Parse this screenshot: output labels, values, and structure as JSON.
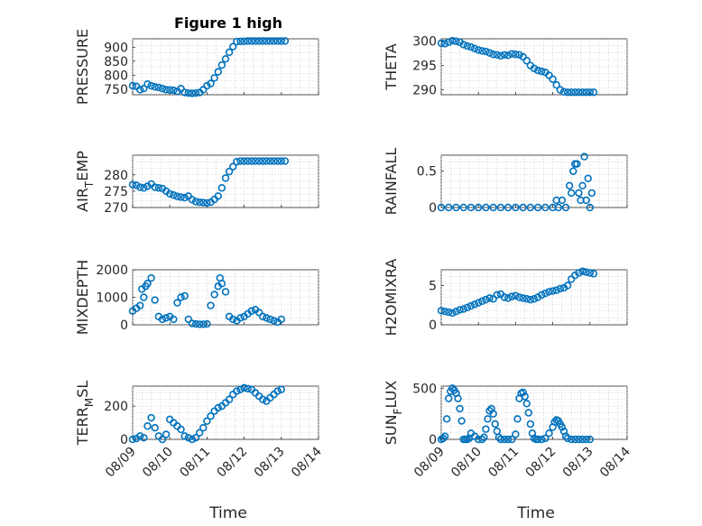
{
  "figure_title": "Figure 1 high",
  "marker_color": "#0072BD",
  "x_axis": {
    "label": "Time",
    "ticks": [
      "08/09",
      "08/10",
      "08/11",
      "08/12",
      "08/13",
      "08/14"
    ],
    "range": [
      "08/09",
      "08/14"
    ]
  },
  "chart_data": [
    {
      "type": "scatter",
      "marker": "o",
      "grid": true,
      "title": "Figure 1 high",
      "ylabel": "PRESSURE",
      "ylabel_parts": [
        "PRESSURE"
      ],
      "ylim": [
        730,
        930
      ],
      "yticks": [
        750,
        800,
        850,
        900
      ],
      "x": [
        0.0,
        0.1,
        0.2,
        0.3,
        0.4,
        0.5,
        0.6,
        0.7,
        0.8,
        0.9,
        1.0,
        1.1,
        1.2,
        1.3,
        1.4,
        1.5,
        1.6,
        1.7,
        1.8,
        1.9,
        2.0,
        2.1,
        2.2,
        2.3,
        2.4,
        2.5,
        2.6,
        2.7,
        2.8,
        2.9,
        3.0,
        3.1,
        3.2,
        3.3,
        3.4,
        3.5,
        3.6,
        3.7,
        3.8,
        3.9,
        4.0,
        4.1
      ],
      "y": [
        762,
        760,
        748,
        752,
        768,
        762,
        758,
        756,
        752,
        748,
        747,
        746,
        742,
        752,
        738,
        736,
        735,
        736,
        738,
        748,
        762,
        770,
        790,
        812,
        836,
        858,
        882,
        902,
        920,
        921,
        921,
        922,
        922,
        922,
        922,
        922,
        922,
        922,
        922,
        922,
        922,
        922
      ]
    },
    {
      "type": "scatter",
      "marker": "o",
      "grid": true,
      "ylabel": "THETA",
      "ylabel_parts": [
        "THETA"
      ],
      "ylim": [
        289,
        300.5
      ],
      "yticks": [
        290,
        295,
        300
      ],
      "x": [
        0.0,
        0.1,
        0.2,
        0.3,
        0.4,
        0.5,
        0.6,
        0.7,
        0.8,
        0.9,
        1.0,
        1.1,
        1.2,
        1.3,
        1.4,
        1.5,
        1.6,
        1.7,
        1.8,
        1.9,
        2.0,
        2.1,
        2.2,
        2.3,
        2.4,
        2.5,
        2.6,
        2.7,
        2.8,
        2.9,
        3.0,
        3.1,
        3.2,
        3.3,
        3.4,
        3.5,
        3.6,
        3.7,
        3.8,
        3.9,
        4.0,
        4.1
      ],
      "y": [
        299.6,
        299.5,
        299.8,
        300.1,
        300.0,
        299.8,
        299.3,
        299.0,
        298.8,
        298.5,
        298.2,
        298.0,
        297.9,
        297.6,
        297.3,
        297.2,
        297.0,
        297.2,
        297.1,
        297.4,
        297.3,
        297.2,
        296.8,
        296.0,
        295.0,
        294.4,
        294.0,
        293.8,
        293.6,
        293.0,
        292.2,
        291.0,
        290.0,
        289.6,
        289.5,
        289.5,
        289.5,
        289.5,
        289.5,
        289.5,
        289.5,
        289.5
      ]
    },
    {
      "type": "scatter",
      "marker": "o",
      "grid": true,
      "ylabel": "AIR_TEMP",
      "ylabel_parts": [
        "AIR",
        "T",
        "EMP"
      ],
      "ylim": [
        270,
        286
      ],
      "yticks": [
        270,
        275,
        280
      ],
      "x": [
        0.0,
        0.1,
        0.2,
        0.3,
        0.4,
        0.5,
        0.6,
        0.7,
        0.8,
        0.9,
        1.0,
        1.1,
        1.2,
        1.3,
        1.4,
        1.5,
        1.6,
        1.7,
        1.8,
        1.9,
        2.0,
        2.1,
        2.2,
        2.3,
        2.4,
        2.5,
        2.6,
        2.7,
        2.8,
        2.9,
        3.0,
        3.1,
        3.2,
        3.3,
        3.4,
        3.5,
        3.6,
        3.7,
        3.8,
        3.9,
        4.0,
        4.1
      ],
      "y": [
        277.0,
        276.8,
        276.2,
        276.0,
        276.5,
        277.2,
        276.2,
        276.0,
        275.8,
        275.0,
        274.2,
        273.8,
        273.4,
        273.2,
        273.0,
        273.5,
        272.4,
        271.8,
        271.6,
        271.5,
        271.4,
        271.6,
        272.5,
        273.5,
        276.0,
        279.0,
        281.0,
        282.5,
        284.0,
        284.2,
        284.2,
        284.2,
        284.2,
        284.2,
        284.2,
        284.2,
        284.2,
        284.2,
        284.2,
        284.2,
        284.2,
        284.2
      ]
    },
    {
      "type": "scatter",
      "marker": "o",
      "grid": true,
      "ylabel": "RAINFALL",
      "ylabel_parts": [
        "RAINFALL"
      ],
      "ylim": [
        0,
        0.72
      ],
      "yticks": [
        0,
        0.5
      ],
      "x": [
        0.0,
        0.2,
        0.4,
        0.6,
        0.8,
        1.0,
        1.2,
        1.4,
        1.6,
        1.8,
        2.0,
        2.2,
        2.4,
        2.6,
        2.8,
        3.0,
        3.1,
        3.15,
        3.25,
        3.35,
        3.45,
        3.5,
        3.55,
        3.6,
        3.65,
        3.7,
        3.75,
        3.8,
        3.85,
        3.9,
        3.95,
        4.0,
        4.05
      ],
      "y": [
        0,
        0,
        0,
        0,
        0,
        0,
        0,
        0,
        0,
        0,
        0,
        0,
        0,
        0,
        0,
        0,
        0.1,
        0,
        0.1,
        0,
        0.3,
        0.2,
        0.5,
        0.6,
        0.6,
        0.2,
        0.1,
        0.3,
        0.7,
        0.1,
        0.4,
        0,
        0.2
      ]
    },
    {
      "type": "scatter",
      "marker": "o",
      "grid": true,
      "ylabel": "MIXDEPTH",
      "ylabel_parts": [
        "MIXDEPTH"
      ],
      "ylim": [
        0,
        2000
      ],
      "yticks": [
        0,
        1000,
        2000
      ],
      "x": [
        0.0,
        0.1,
        0.2,
        0.25,
        0.3,
        0.35,
        0.4,
        0.5,
        0.6,
        0.7,
        0.8,
        0.9,
        1.0,
        1.1,
        1.2,
        1.3,
        1.4,
        1.5,
        1.6,
        1.7,
        1.8,
        1.9,
        2.0,
        2.1,
        2.2,
        2.3,
        2.35,
        2.4,
        2.5,
        2.6,
        2.7,
        2.8,
        2.9,
        3.0,
        3.1,
        3.2,
        3.3,
        3.4,
        3.5,
        3.6,
        3.7,
        3.8,
        3.9,
        4.0
      ],
      "y": [
        500,
        600,
        700,
        1300,
        1000,
        1400,
        1500,
        1700,
        900,
        300,
        200,
        250,
        300,
        200,
        800,
        1000,
        1050,
        200,
        50,
        30,
        20,
        20,
        30,
        700,
        1100,
        1400,
        1700,
        1500,
        1200,
        300,
        200,
        150,
        250,
        300,
        400,
        500,
        550,
        450,
        300,
        250,
        200,
        150,
        100,
        200
      ]
    },
    {
      "type": "scatter",
      "marker": "o",
      "grid": true,
      "ylabel": "H2OMIXRA",
      "ylabel_parts": [
        "H2OMIXRA"
      ],
      "ylim": [
        0,
        7
      ],
      "yticks": [
        0,
        5
      ],
      "x": [
        0.0,
        0.1,
        0.2,
        0.3,
        0.4,
        0.5,
        0.6,
        0.7,
        0.8,
        0.9,
        1.0,
        1.1,
        1.2,
        1.3,
        1.4,
        1.5,
        1.6,
        1.7,
        1.8,
        1.9,
        2.0,
        2.1,
        2.2,
        2.3,
        2.4,
        2.5,
        2.6,
        2.7,
        2.8,
        2.9,
        3.0,
        3.1,
        3.2,
        3.3,
        3.4,
        3.5,
        3.6,
        3.7,
        3.8,
        3.9,
        4.0,
        4.1
      ],
      "y": [
        1.8,
        1.7,
        1.6,
        1.5,
        1.7,
        1.9,
        2.0,
        2.2,
        2.4,
        2.6,
        2.8,
        3.0,
        3.2,
        3.4,
        3.3,
        3.8,
        3.9,
        3.5,
        3.4,
        3.6,
        3.7,
        3.5,
        3.4,
        3.3,
        3.2,
        3.3,
        3.5,
        3.8,
        4.0,
        4.2,
        4.3,
        4.4,
        4.6,
        4.7,
        5.0,
        5.8,
        6.3,
        6.6,
        6.8,
        6.7,
        6.6,
        6.5
      ]
    },
    {
      "type": "scatter",
      "marker": "o",
      "grid": true,
      "ylabel": "TERR_MSL",
      "ylabel_parts": [
        "TERR",
        "M",
        "SL"
      ],
      "ylim": [
        0,
        320
      ],
      "yticks": [
        0,
        200
      ],
      "x": [
        0.0,
        0.1,
        0.2,
        0.3,
        0.4,
        0.5,
        0.6,
        0.7,
        0.8,
        0.9,
        1.0,
        1.1,
        1.2,
        1.3,
        1.4,
        1.5,
        1.6,
        1.7,
        1.8,
        1.9,
        2.0,
        2.1,
        2.2,
        2.3,
        2.4,
        2.5,
        2.6,
        2.7,
        2.8,
        2.9,
        3.0,
        3.1,
        3.2,
        3.3,
        3.4,
        3.5,
        3.6,
        3.7,
        3.8,
        3.9,
        4.0
      ],
      "y": [
        0,
        5,
        20,
        10,
        80,
        130,
        70,
        20,
        0,
        30,
        120,
        100,
        80,
        60,
        20,
        10,
        0,
        10,
        40,
        70,
        110,
        140,
        170,
        190,
        200,
        220,
        240,
        270,
        290,
        300,
        310,
        305,
        300,
        280,
        260,
        240,
        230,
        250,
        270,
        290,
        300
      ]
    },
    {
      "type": "scatter",
      "marker": "o",
      "grid": true,
      "ylabel": "SUN_FLUX",
      "ylabel_parts": [
        "SUN",
        "F",
        "LUX"
      ],
      "ylim": [
        0,
        520
      ],
      "yticks": [
        0,
        500
      ],
      "x": [
        0.0,
        0.05,
        0.1,
        0.15,
        0.2,
        0.25,
        0.3,
        0.35,
        0.4,
        0.45,
        0.5,
        0.55,
        0.6,
        0.65,
        0.7,
        0.75,
        0.8,
        0.9,
        1.0,
        1.1,
        1.15,
        1.2,
        1.25,
        1.3,
        1.35,
        1.4,
        1.45,
        1.5,
        1.55,
        1.6,
        1.7,
        1.8,
        1.9,
        2.0,
        2.05,
        2.1,
        2.15,
        2.2,
        2.25,
        2.3,
        2.35,
        2.4,
        2.45,
        2.5,
        2.55,
        2.6,
        2.7,
        2.8,
        2.9,
        3.0,
        3.05,
        3.1,
        3.15,
        3.2,
        3.25,
        3.3,
        3.35,
        3.4,
        3.5,
        3.6,
        3.7,
        3.8,
        3.9,
        4.0
      ],
      "y": [
        0,
        10,
        30,
        200,
        400,
        470,
        500,
        480,
        450,
        400,
        300,
        180,
        0,
        0,
        0,
        10,
        60,
        30,
        0,
        0,
        20,
        100,
        200,
        280,
        300,
        250,
        150,
        80,
        20,
        0,
        0,
        0,
        0,
        50,
        200,
        400,
        450,
        460,
        420,
        350,
        260,
        150,
        60,
        10,
        0,
        0,
        0,
        10,
        60,
        120,
        170,
        190,
        180,
        150,
        120,
        80,
        30,
        10,
        0,
        0,
        0,
        0,
        0,
        0
      ]
    }
  ]
}
